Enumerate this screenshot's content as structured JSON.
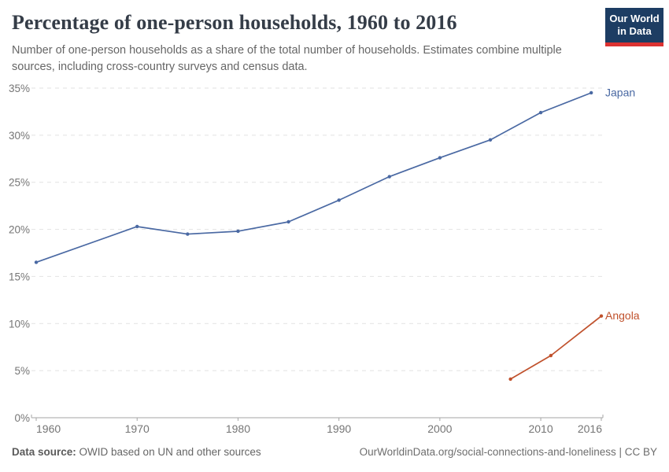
{
  "header": {
    "title": "Percentage of one-person households, 1960 to 2016",
    "subtitle": "Number of one-person households as a share of the total number of households. Estimates combine multiple sources, including cross-country surveys and census data.",
    "logo": {
      "line1": "Our World",
      "line2": "in Data",
      "bg_color": "#1d3d63",
      "accent_color": "#dc3231"
    }
  },
  "chart_data": {
    "type": "line",
    "title": "Percentage of one-person households, 1960 to 2016",
    "xlabel": "",
    "ylabel": "",
    "xlim": [
      1960,
      2016
    ],
    "ylim": [
      0,
      35
    ],
    "grid": "horizontal-dashed",
    "legend_position": "end-of-line-labels",
    "x_ticks": [
      1960,
      1970,
      1980,
      1990,
      2000,
      2010,
      2016
    ],
    "y_ticks": [
      0,
      5,
      10,
      15,
      20,
      25,
      30,
      35
    ],
    "y_tick_suffix": "%",
    "series": [
      {
        "name": "Japan",
        "color": "#4a69a3",
        "points": [
          [
            1960,
            16.5
          ],
          [
            1970,
            20.3
          ],
          [
            1975,
            19.5
          ],
          [
            1980,
            19.8
          ],
          [
            1985,
            20.8
          ],
          [
            1990,
            23.1
          ],
          [
            1995,
            25.6
          ],
          [
            2000,
            27.6
          ],
          [
            2005,
            29.5
          ],
          [
            2010,
            32.4
          ],
          [
            2015,
            34.5
          ]
        ]
      },
      {
        "name": "Angola",
        "color": "#c0512c",
        "points": [
          [
            2007,
            4.1
          ],
          [
            2011,
            6.6
          ],
          [
            2016,
            10.8
          ]
        ]
      }
    ],
    "colors": {
      "gridline": "#e2e2e2",
      "axis": "#a5a5a5",
      "tick_label": "#757575"
    }
  },
  "footer": {
    "source_label": "Data source:",
    "source_text": " OWID based on UN and other sources",
    "link_text": "OurWorldinData.org/social-connections-and-loneliness | CC BY"
  }
}
